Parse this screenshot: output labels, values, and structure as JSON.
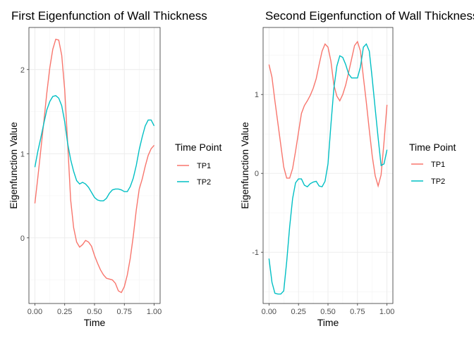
{
  "chart_data": [
    {
      "type": "line",
      "title": "First Eigenfunction of Wall Thickness",
      "xlabel": "Time",
      "ylabel": "Eigenfunction Value",
      "x_ticks": [
        0,
        0.25,
        0.5,
        0.75,
        1
      ],
      "x_tick_labels": [
        "0.00",
        "0.25",
        "0.50",
        "0.75",
        "1.00"
      ],
      "y_ticks": [
        0,
        1,
        2
      ],
      "y_tick_labels": [
        "0",
        "1",
        "2"
      ],
      "xlim": [
        -0.05,
        1.05
      ],
      "ylim": [
        -0.78,
        2.5
      ],
      "grid": true,
      "legend": {
        "title": "Time Point",
        "position": "right",
        "entries": [
          {
            "label": "TP1",
            "color": "#F8766D"
          },
          {
            "label": "TP2",
            "color": "#00BFC4"
          }
        ]
      },
      "x": [
        0,
        0.025,
        0.05,
        0.075,
        0.1,
        0.125,
        0.15,
        0.175,
        0.2,
        0.225,
        0.25,
        0.275,
        0.3,
        0.325,
        0.35,
        0.375,
        0.4,
        0.425,
        0.45,
        0.475,
        0.5,
        0.525,
        0.55,
        0.575,
        0.6,
        0.625,
        0.65,
        0.675,
        0.7,
        0.725,
        0.75,
        0.775,
        0.8,
        0.825,
        0.85,
        0.875,
        0.9,
        0.925,
        0.95,
        0.975,
        1
      ],
      "series": [
        {
          "name": "TP1",
          "color": "#F8766D",
          "values": [
            0.41,
            0.72,
            1.05,
            1.38,
            1.72,
            2.02,
            2.24,
            2.36,
            2.35,
            2.17,
            1.76,
            1.12,
            0.45,
            0.12,
            -0.05,
            -0.11,
            -0.08,
            -0.03,
            -0.05,
            -0.1,
            -0.21,
            -0.3,
            -0.38,
            -0.44,
            -0.48,
            -0.49,
            -0.5,
            -0.54,
            -0.63,
            -0.65,
            -0.58,
            -0.44,
            -0.24,
            0.02,
            0.33,
            0.58,
            0.7,
            0.85,
            0.98,
            1.06,
            1.1
          ]
        },
        {
          "name": "TP2",
          "color": "#00BFC4",
          "values": [
            0.84,
            1.03,
            1.19,
            1.36,
            1.52,
            1.62,
            1.68,
            1.69,
            1.66,
            1.57,
            1.38,
            1.12,
            0.93,
            0.79,
            0.68,
            0.64,
            0.66,
            0.64,
            0.6,
            0.54,
            0.48,
            0.45,
            0.44,
            0.44,
            0.47,
            0.53,
            0.57,
            0.58,
            0.58,
            0.57,
            0.55,
            0.55,
            0.61,
            0.71,
            0.86,
            1.05,
            1.2,
            1.33,
            1.4,
            1.4,
            1.33
          ]
        }
      ]
    },
    {
      "type": "line",
      "title": "Second Eigenfunction of Wall Thickness",
      "xlabel": "Time",
      "ylabel": "Eigenfunction Value",
      "x_ticks": [
        0,
        0.25,
        0.5,
        0.75,
        1
      ],
      "x_tick_labels": [
        "0.00",
        "0.25",
        "0.50",
        "0.75",
        "1.00"
      ],
      "y_ticks": [
        -1,
        0,
        1
      ],
      "y_tick_labels": [
        "-1",
        "0",
        "1"
      ],
      "xlim": [
        -0.05,
        1.05
      ],
      "ylim": [
        -1.65,
        1.85
      ],
      "grid": true,
      "legend": {
        "title": "Time Point",
        "position": "right",
        "entries": [
          {
            "label": "TP1",
            "color": "#F8766D"
          },
          {
            "label": "TP2",
            "color": "#00BFC4"
          }
        ]
      },
      "x": [
        0,
        0.025,
        0.05,
        0.075,
        0.1,
        0.125,
        0.15,
        0.175,
        0.2,
        0.225,
        0.25,
        0.275,
        0.3,
        0.325,
        0.35,
        0.375,
        0.4,
        0.425,
        0.45,
        0.475,
        0.5,
        0.525,
        0.55,
        0.575,
        0.6,
        0.625,
        0.65,
        0.675,
        0.7,
        0.725,
        0.75,
        0.775,
        0.8,
        0.825,
        0.85,
        0.875,
        0.9,
        0.925,
        0.95,
        0.975,
        1
      ],
      "series": [
        {
          "name": "TP1",
          "color": "#F8766D",
          "values": [
            1.38,
            1.22,
            0.92,
            0.64,
            0.36,
            0.08,
            -0.06,
            -0.06,
            0.06,
            0.28,
            0.52,
            0.76,
            0.86,
            0.92,
            0.99,
            1.08,
            1.2,
            1.38,
            1.55,
            1.64,
            1.6,
            1.42,
            1.12,
            0.98,
            0.92,
            1.0,
            1.12,
            1.28,
            1.45,
            1.62,
            1.67,
            1.55,
            1.22,
            0.9,
            0.55,
            0.22,
            -0.03,
            -0.16,
            -0.02,
            0.4,
            0.87
          ]
        },
        {
          "name": "TP2",
          "color": "#00BFC4",
          "values": [
            -1.08,
            -1.38,
            -1.52,
            -1.53,
            -1.53,
            -1.49,
            -1.12,
            -0.68,
            -0.32,
            -0.12,
            -0.07,
            -0.07,
            -0.15,
            -0.17,
            -0.13,
            -0.11,
            -0.1,
            -0.16,
            -0.17,
            -0.1,
            0.12,
            0.62,
            1.08,
            1.36,
            1.49,
            1.47,
            1.38,
            1.26,
            1.21,
            1.21,
            1.21,
            1.35,
            1.6,
            1.64,
            1.55,
            1.2,
            0.82,
            0.45,
            0.1,
            0.12,
            0.3
          ]
        }
      ]
    }
  ]
}
